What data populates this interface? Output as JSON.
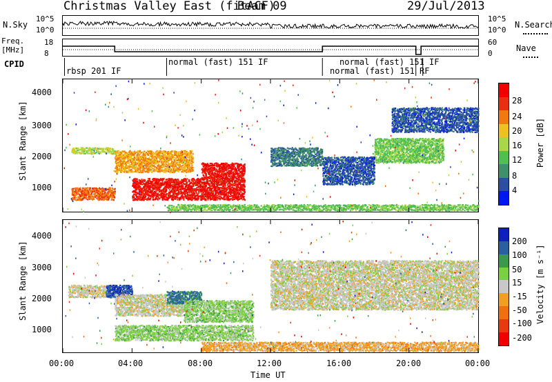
{
  "header": {
    "station": "Christmas Valley East (fitACF)",
    "beam": "Beam 09",
    "date": "29/Jul/2013"
  },
  "noise_panel": {
    "left_label": "N.Sky",
    "left_ticks": [
      "10^5",
      "10^0"
    ],
    "right_ticks": [
      "10^5",
      "10^0"
    ],
    "right_label": "N.Search",
    "right_legend_style": "dotted"
  },
  "freq_panel": {
    "left_label_1": "Freq.",
    "left_label_2": "[MHz]",
    "left_ticks": [
      "18",
      "8"
    ],
    "right_ticks": [
      "60",
      "0"
    ],
    "right_label": "Nave",
    "right_legend_style": "dotted"
  },
  "cpid_panel": {
    "label": "CPID",
    "segments": [
      "rbsp 201 IF",
      "normal (fast) 151 IF",
      "normal (fast) 151 IF",
      "normal (fast) 151 RF"
    ]
  },
  "power_panel": {
    "ylabel": "Slant Range [km]",
    "yticks": [
      "4000",
      "3000",
      "2000",
      "1000"
    ],
    "colorbar_title": "Power [dB]",
    "colorbar_ticks": [
      "28",
      "24",
      "20",
      "16",
      "12",
      "8",
      "4"
    ],
    "colors": [
      "#0018f0",
      "#2a4fa0",
      "#3f8f6a",
      "#4fbf4f",
      "#a8d84a",
      "#f0c020",
      "#f07a10",
      "#e83010",
      "#f00000"
    ]
  },
  "velocity_panel": {
    "ylabel": "Slant Range [km]",
    "yticks": [
      "4000",
      "3000",
      "2000",
      "1000"
    ],
    "colorbar_title": "Velocity [m s⁻¹]",
    "colorbar_ticks": [
      "200",
      "100",
      "50",
      "15",
      "-15",
      "-50",
      "-100",
      "-200"
    ],
    "colors": [
      "#1020c0",
      "#2a60a0",
      "#3a9a4a",
      "#7ad040",
      "#c8c8c8",
      "#f0a020",
      "#f07010",
      "#e83a10",
      "#f00000"
    ]
  },
  "x_axis": {
    "ticks": [
      "00:00",
      "04:00",
      "08:00",
      "12:00",
      "16:00",
      "20:00",
      "00:00"
    ],
    "label": "Time UT"
  },
  "chart_data": {
    "type": "heatmap",
    "x_unit": "hours UT",
    "xlim": [
      0,
      24
    ],
    "ylim": [
      200,
      4500
    ],
    "x": [
      0,
      4,
      8,
      12,
      16,
      20,
      24
    ],
    "frequency_MHz": {
      "segments": [
        {
          "from": 0.0,
          "to": 3.0,
          "value": 14
        },
        {
          "from": 3.0,
          "to": 15.0,
          "value": 10
        },
        {
          "from": 15.0,
          "to": 20.4,
          "value": 14
        },
        {
          "from": 20.4,
          "to": 20.7,
          "value": 8
        },
        {
          "from": 20.7,
          "to": 24.0,
          "value": 14
        }
      ]
    },
    "cpid_boundaries": [
      0.1,
      6.0,
      15.0,
      20.4,
      20.8
    ],
    "power_dB": {
      "range": [
        4,
        28
      ],
      "bands": [
        {
          "from": 0.5,
          "to": 3.0,
          "range_start": 2100,
          "range_end": 2300,
          "level": 16
        },
        {
          "from": 0.5,
          "to": 3.0,
          "range_start": 600,
          "range_end": 1000,
          "level": 22
        },
        {
          "from": 3.0,
          "to": 7.5,
          "range_start": 1500,
          "range_end": 2200,
          "level": 20
        },
        {
          "from": 4.0,
          "to": 10.5,
          "range_start": 600,
          "range_end": 1300,
          "level": 26
        },
        {
          "from": 8.0,
          "to": 10.5,
          "range_start": 1300,
          "range_end": 1800,
          "level": 26
        },
        {
          "from": 12.0,
          "to": 15.0,
          "range_start": 1700,
          "range_end": 2300,
          "level": 10
        },
        {
          "from": 15.0,
          "to": 18.0,
          "range_start": 1100,
          "range_end": 2000,
          "level": 8
        },
        {
          "from": 18.0,
          "to": 22.0,
          "range_start": 1800,
          "range_end": 2600,
          "level": 14
        },
        {
          "from": 19.0,
          "to": 24.0,
          "range_start": 2800,
          "range_end": 3600,
          "level": 8
        },
        {
          "from": 6.0,
          "to": 24.0,
          "range_start": 250,
          "range_end": 450,
          "level": 14
        }
      ]
    },
    "velocity_mps": {
      "range": [
        -200,
        200
      ],
      "bands": [
        {
          "from": 0.3,
          "to": 3.0,
          "range_start": 2000,
          "range_end": 2400,
          "level": 0
        },
        {
          "from": 2.5,
          "to": 4.0,
          "range_start": 2000,
          "range_end": 2400,
          "level": 150
        },
        {
          "from": 3.0,
          "to": 7.0,
          "range_start": 1400,
          "range_end": 2100,
          "level": 0
        },
        {
          "from": 6.0,
          "to": 8.0,
          "range_start": 1800,
          "range_end": 2200,
          "level": 120
        },
        {
          "from": 7.0,
          "to": 11.0,
          "range_start": 1200,
          "range_end": 1900,
          "level": 40
        },
        {
          "from": 3.0,
          "to": 11.0,
          "range_start": 600,
          "range_end": 1100,
          "level": 40
        },
        {
          "from": 12.0,
          "to": 24.0,
          "range_start": 1600,
          "range_end": 3200,
          "level": 0
        },
        {
          "from": 8.0,
          "to": 24.0,
          "range_start": 250,
          "range_end": 550,
          "level": -40
        }
      ]
    }
  }
}
